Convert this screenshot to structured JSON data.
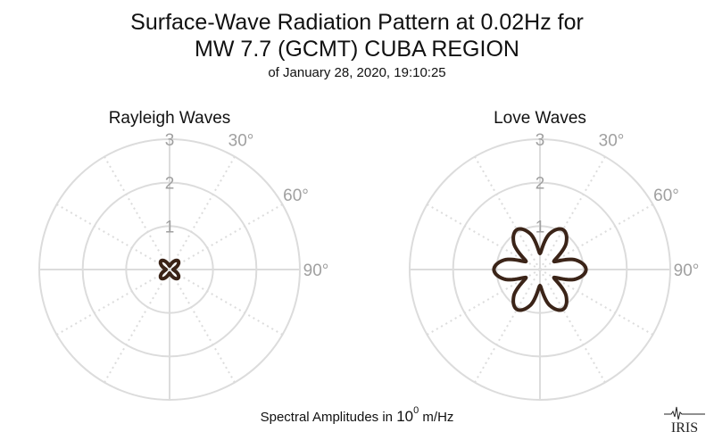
{
  "title": {
    "line1": "Surface-Wave Radiation Pattern at 0.02Hz for",
    "line2": "MW 7.7 (GCMT) CUBA REGION",
    "subtitle": "of January 28, 2020, 19:10:25"
  },
  "footer": {
    "prefix": "Spectral Amplitudes in",
    "base": "10",
    "exponent": "0",
    "unit": "m/Hz"
  },
  "logo_text": "IRIS",
  "colors": {
    "grid": "#dcdcdc",
    "tick": "#a0a0a0",
    "curve": "#3b2418"
  },
  "chart_data": [
    {
      "type": "polar",
      "title": "Rayleigh Waves",
      "radial_ticks": [
        "1",
        "2",
        "3"
      ],
      "rmax": 3,
      "angle_ticks": [
        "30°",
        "60°",
        "90°"
      ],
      "series": [
        {
          "theta_deg": [
            0,
            45,
            90,
            135,
            180,
            225,
            270,
            315,
            360
          ],
          "r": [
            0.08,
            0.28,
            0.08,
            0.28,
            0.08,
            0.28,
            0.08,
            0.28,
            0.08
          ]
        }
      ]
    },
    {
      "type": "polar",
      "title": "Love Waves",
      "radial_ticks": [
        "1",
        "2",
        "3"
      ],
      "rmax": 3,
      "angle_ticks": [
        "30°",
        "60°",
        "90°"
      ],
      "series": [
        {
          "theta_deg": [
            0,
            15,
            30,
            45,
            60,
            75,
            90,
            105,
            120,
            135,
            150,
            165,
            180
          ],
          "r": [
            0.37,
            0.85,
            1.06,
            0.85,
            0.37,
            0.85,
            1.06,
            0.85,
            0.37,
            0.85,
            1.06,
            0.85,
            0.37
          ]
        }
      ]
    }
  ]
}
